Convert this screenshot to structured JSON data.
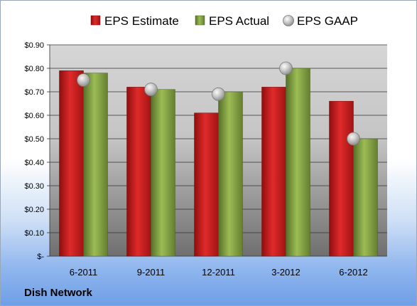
{
  "company": "Dish Network",
  "colors": {
    "estimate": "#c81c1c",
    "actual": "#7d9a3a",
    "gaap": "#b9b9b9"
  },
  "chart_data": {
    "type": "bar",
    "title": "",
    "xlabel": "",
    "ylabel": "",
    "categories": [
      "6-2011",
      "9-2011",
      "12-2011",
      "3-2012",
      "6-2012"
    ],
    "series": [
      {
        "name": "EPS Estimate",
        "kind": "bar",
        "values": [
          0.79,
          0.72,
          0.61,
          0.72,
          0.66
        ]
      },
      {
        "name": "EPS Actual",
        "kind": "bar",
        "values": [
          0.78,
          0.71,
          0.7,
          0.8,
          0.5
        ]
      },
      {
        "name": "EPS GAAP",
        "kind": "marker",
        "values": [
          0.75,
          0.71,
          0.69,
          0.8,
          0.5
        ]
      }
    ],
    "ylim": [
      0,
      0.9
    ],
    "yticks": [
      {
        "value": 0.0,
        "label": "$-"
      },
      {
        "value": 0.1,
        "label": "$0.10"
      },
      {
        "value": 0.2,
        "label": "$0.20"
      },
      {
        "value": 0.3,
        "label": "$0.30"
      },
      {
        "value": 0.4,
        "label": "$0.40"
      },
      {
        "value": 0.5,
        "label": "$0.50"
      },
      {
        "value": 0.6,
        "label": "$0.60"
      },
      {
        "value": 0.7,
        "label": "$0.70"
      },
      {
        "value": 0.8,
        "label": "$0.80"
      },
      {
        "value": 0.9,
        "label": "$0.90"
      }
    ],
    "grid": true,
    "legend": "top"
  }
}
